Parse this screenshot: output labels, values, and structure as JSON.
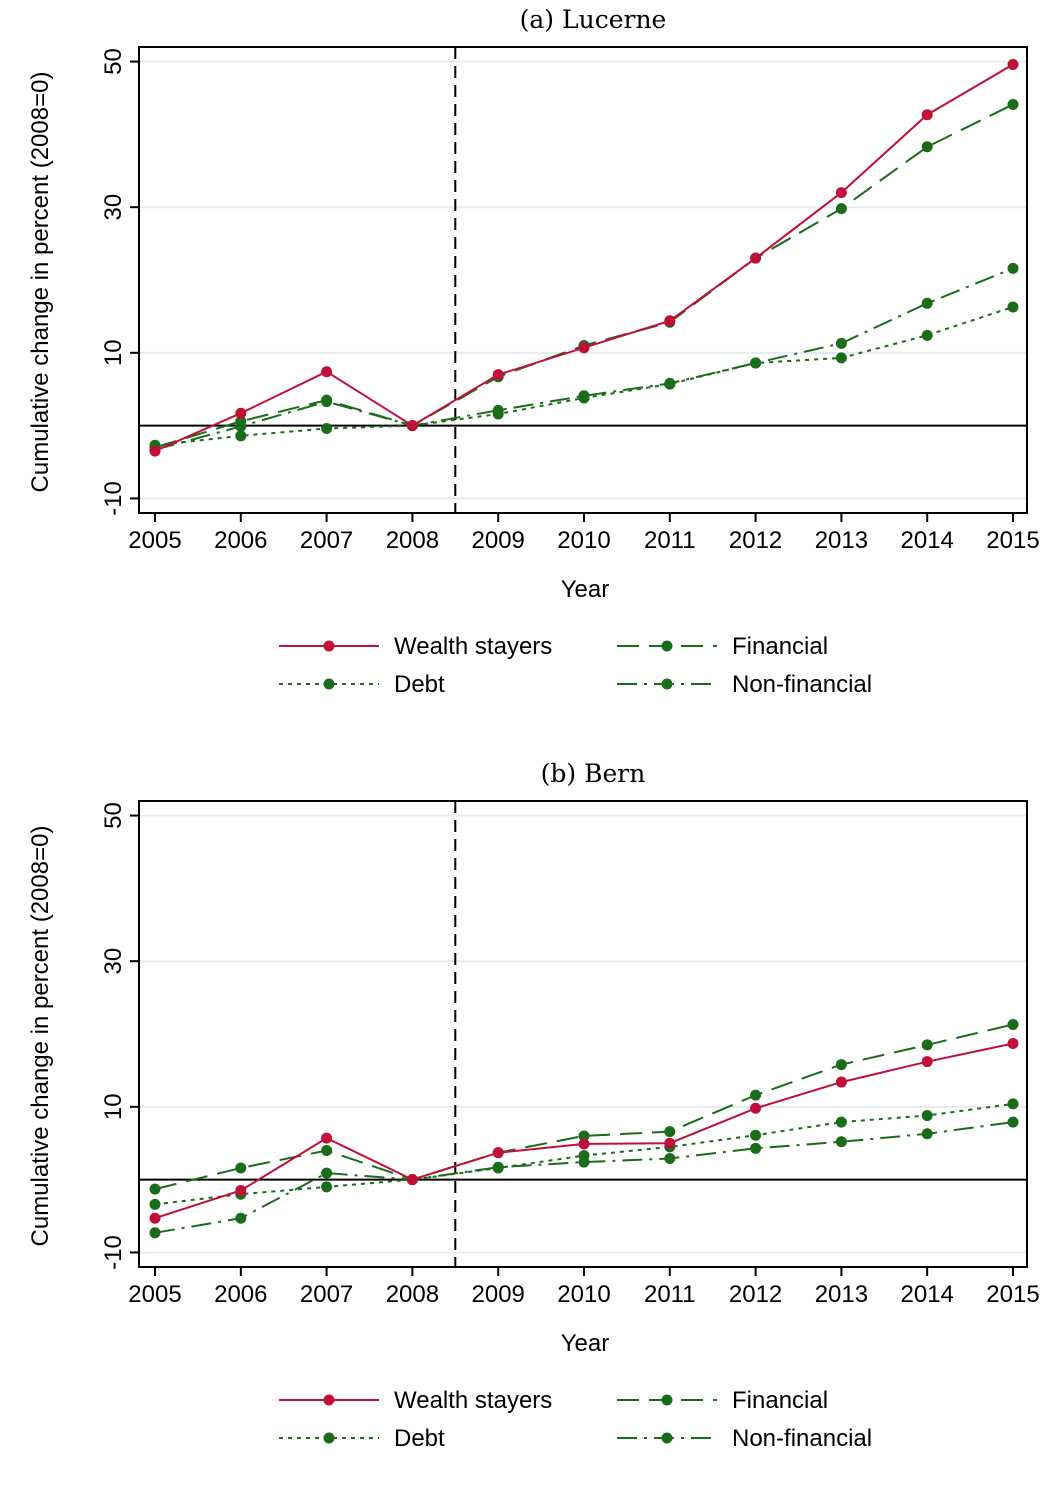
{
  "chart_data": [
    {
      "type": "line",
      "title": "(a) Lucerne",
      "xlabel": "Year",
      "ylabel": "Cumulative change in percent (2008=0)",
      "x": [
        2005,
        2006,
        2007,
        2008,
        2009,
        2010,
        2011,
        2012,
        2013,
        2014,
        2015
      ],
      "yticks": [
        -10,
        10,
        30,
        50
      ],
      "ylim": [
        -12,
        52
      ],
      "reference_line_y": 0,
      "vertical_line_x": 2008.5,
      "grid": true,
      "legend_position": "bottom",
      "series": [
        {
          "name": "Wealth stayers",
          "color": "#c0103a",
          "dash": "solid",
          "values": [
            -3.5,
            1.7,
            7.4,
            0,
            7.0,
            10.7,
            14.4,
            23.0,
            32.0,
            42.7,
            49.6
          ]
        },
        {
          "name": "Financial",
          "color": "#1a6b1a",
          "dash": "longdash",
          "values": [
            -3.0,
            0.6,
            3.5,
            0,
            6.7,
            11.0,
            14.2,
            23.0,
            29.8,
            38.3,
            44.1
          ]
        },
        {
          "name": "Debt",
          "color": "#1a6b1a",
          "dash": "dot",
          "values": [
            -2.7,
            -1.4,
            -0.4,
            0,
            1.6,
            3.8,
            5.7,
            8.6,
            9.3,
            12.4,
            16.3
          ]
        },
        {
          "name": "Non-financial",
          "color": "#1a6b1a",
          "dash": "dashdot",
          "values": [
            -3.3,
            -0.1,
            3.3,
            0,
            2.1,
            4.1,
            5.8,
            8.6,
            11.3,
            16.8,
            21.6
          ]
        }
      ]
    },
    {
      "type": "line",
      "title": "(b) Bern",
      "xlabel": "Year",
      "ylabel": "Cumulative change in percent (2008=0)",
      "x": [
        2005,
        2006,
        2007,
        2008,
        2009,
        2010,
        2011,
        2012,
        2013,
        2014,
        2015
      ],
      "yticks": [
        -10,
        10,
        30,
        50
      ],
      "ylim": [
        -12,
        52
      ],
      "reference_line_y": 0,
      "vertical_line_x": 2008.5,
      "grid": true,
      "legend_position": "bottom",
      "series": [
        {
          "name": "Wealth stayers",
          "color": "#c0103a",
          "dash": "solid",
          "values": [
            -5.3,
            -1.5,
            5.7,
            0,
            3.7,
            4.9,
            5.0,
            9.8,
            13.4,
            16.2,
            18.7
          ]
        },
        {
          "name": "Financial",
          "color": "#1a6b1a",
          "dash": "longdash",
          "values": [
            -1.3,
            1.6,
            4.0,
            0,
            3.7,
            6.0,
            6.6,
            11.6,
            15.8,
            18.5,
            21.3
          ]
        },
        {
          "name": "Debt",
          "color": "#1a6b1a",
          "dash": "dot",
          "values": [
            -3.4,
            -2.0,
            -1.0,
            0,
            1.6,
            3.3,
            4.5,
            6.1,
            7.9,
            8.8,
            10.4
          ]
        },
        {
          "name": "Non-financial",
          "color": "#1a6b1a",
          "dash": "dashdot",
          "values": [
            -7.3,
            -5.3,
            0.9,
            0,
            1.7,
            2.4,
            2.9,
            4.3,
            5.2,
            6.3,
            7.9
          ]
        }
      ]
    }
  ]
}
